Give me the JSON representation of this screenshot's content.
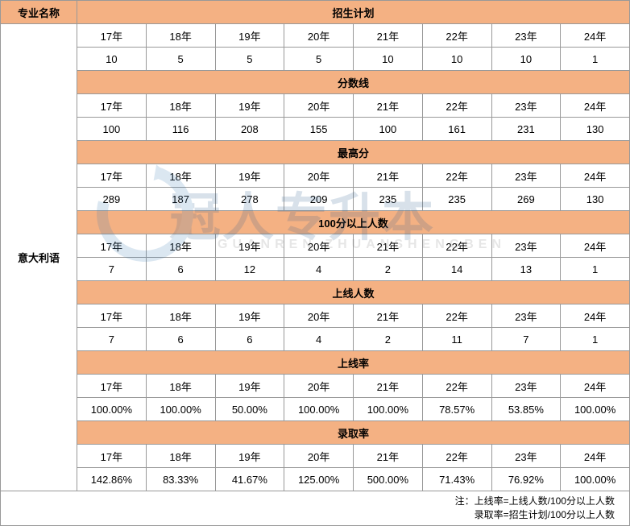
{
  "header": {
    "major_col": "专业名称"
  },
  "major": "意大利语",
  "years": [
    "17年",
    "18年",
    "19年",
    "20年",
    "21年",
    "22年",
    "23年",
    "24年"
  ],
  "sections": [
    {
      "title": "招生计划",
      "values": [
        "10",
        "5",
        "5",
        "5",
        "10",
        "10",
        "10",
        "1"
      ]
    },
    {
      "title": "分数线",
      "values": [
        "100",
        "116",
        "208",
        "155",
        "100",
        "161",
        "231",
        "130"
      ]
    },
    {
      "title": "最高分",
      "values": [
        "289",
        "187",
        "278",
        "209",
        "235",
        "235",
        "269",
        "130"
      ]
    },
    {
      "title": "100分以上人数",
      "values": [
        "7",
        "6",
        "12",
        "4",
        "2",
        "14",
        "13",
        "1"
      ]
    },
    {
      "title": "上线人数",
      "values": [
        "7",
        "6",
        "6",
        "4",
        "2",
        "11",
        "7",
        "1"
      ]
    },
    {
      "title": "上线率",
      "values": [
        "100.00%",
        "100.00%",
        "50.00%",
        "100.00%",
        "100.00%",
        "78.57%",
        "53.85%",
        "100.00%"
      ]
    },
    {
      "title": "录取率",
      "values": [
        "142.86%",
        "83.33%",
        "41.67%",
        "125.00%",
        "500.00%",
        "71.43%",
        "76.92%",
        "100.00%"
      ]
    }
  ],
  "notes": {
    "line1": "注：上线率=上线人数/100分以上人数",
    "line2": "录取率=招生计划/100分以上人数"
  },
  "watermark": {
    "main": "冠人专升本",
    "sub": "GUANREN ZHUANSHENGBEN"
  },
  "style": {
    "header_bg": "#f4b183",
    "border": "#999999",
    "font_size": 13
  }
}
